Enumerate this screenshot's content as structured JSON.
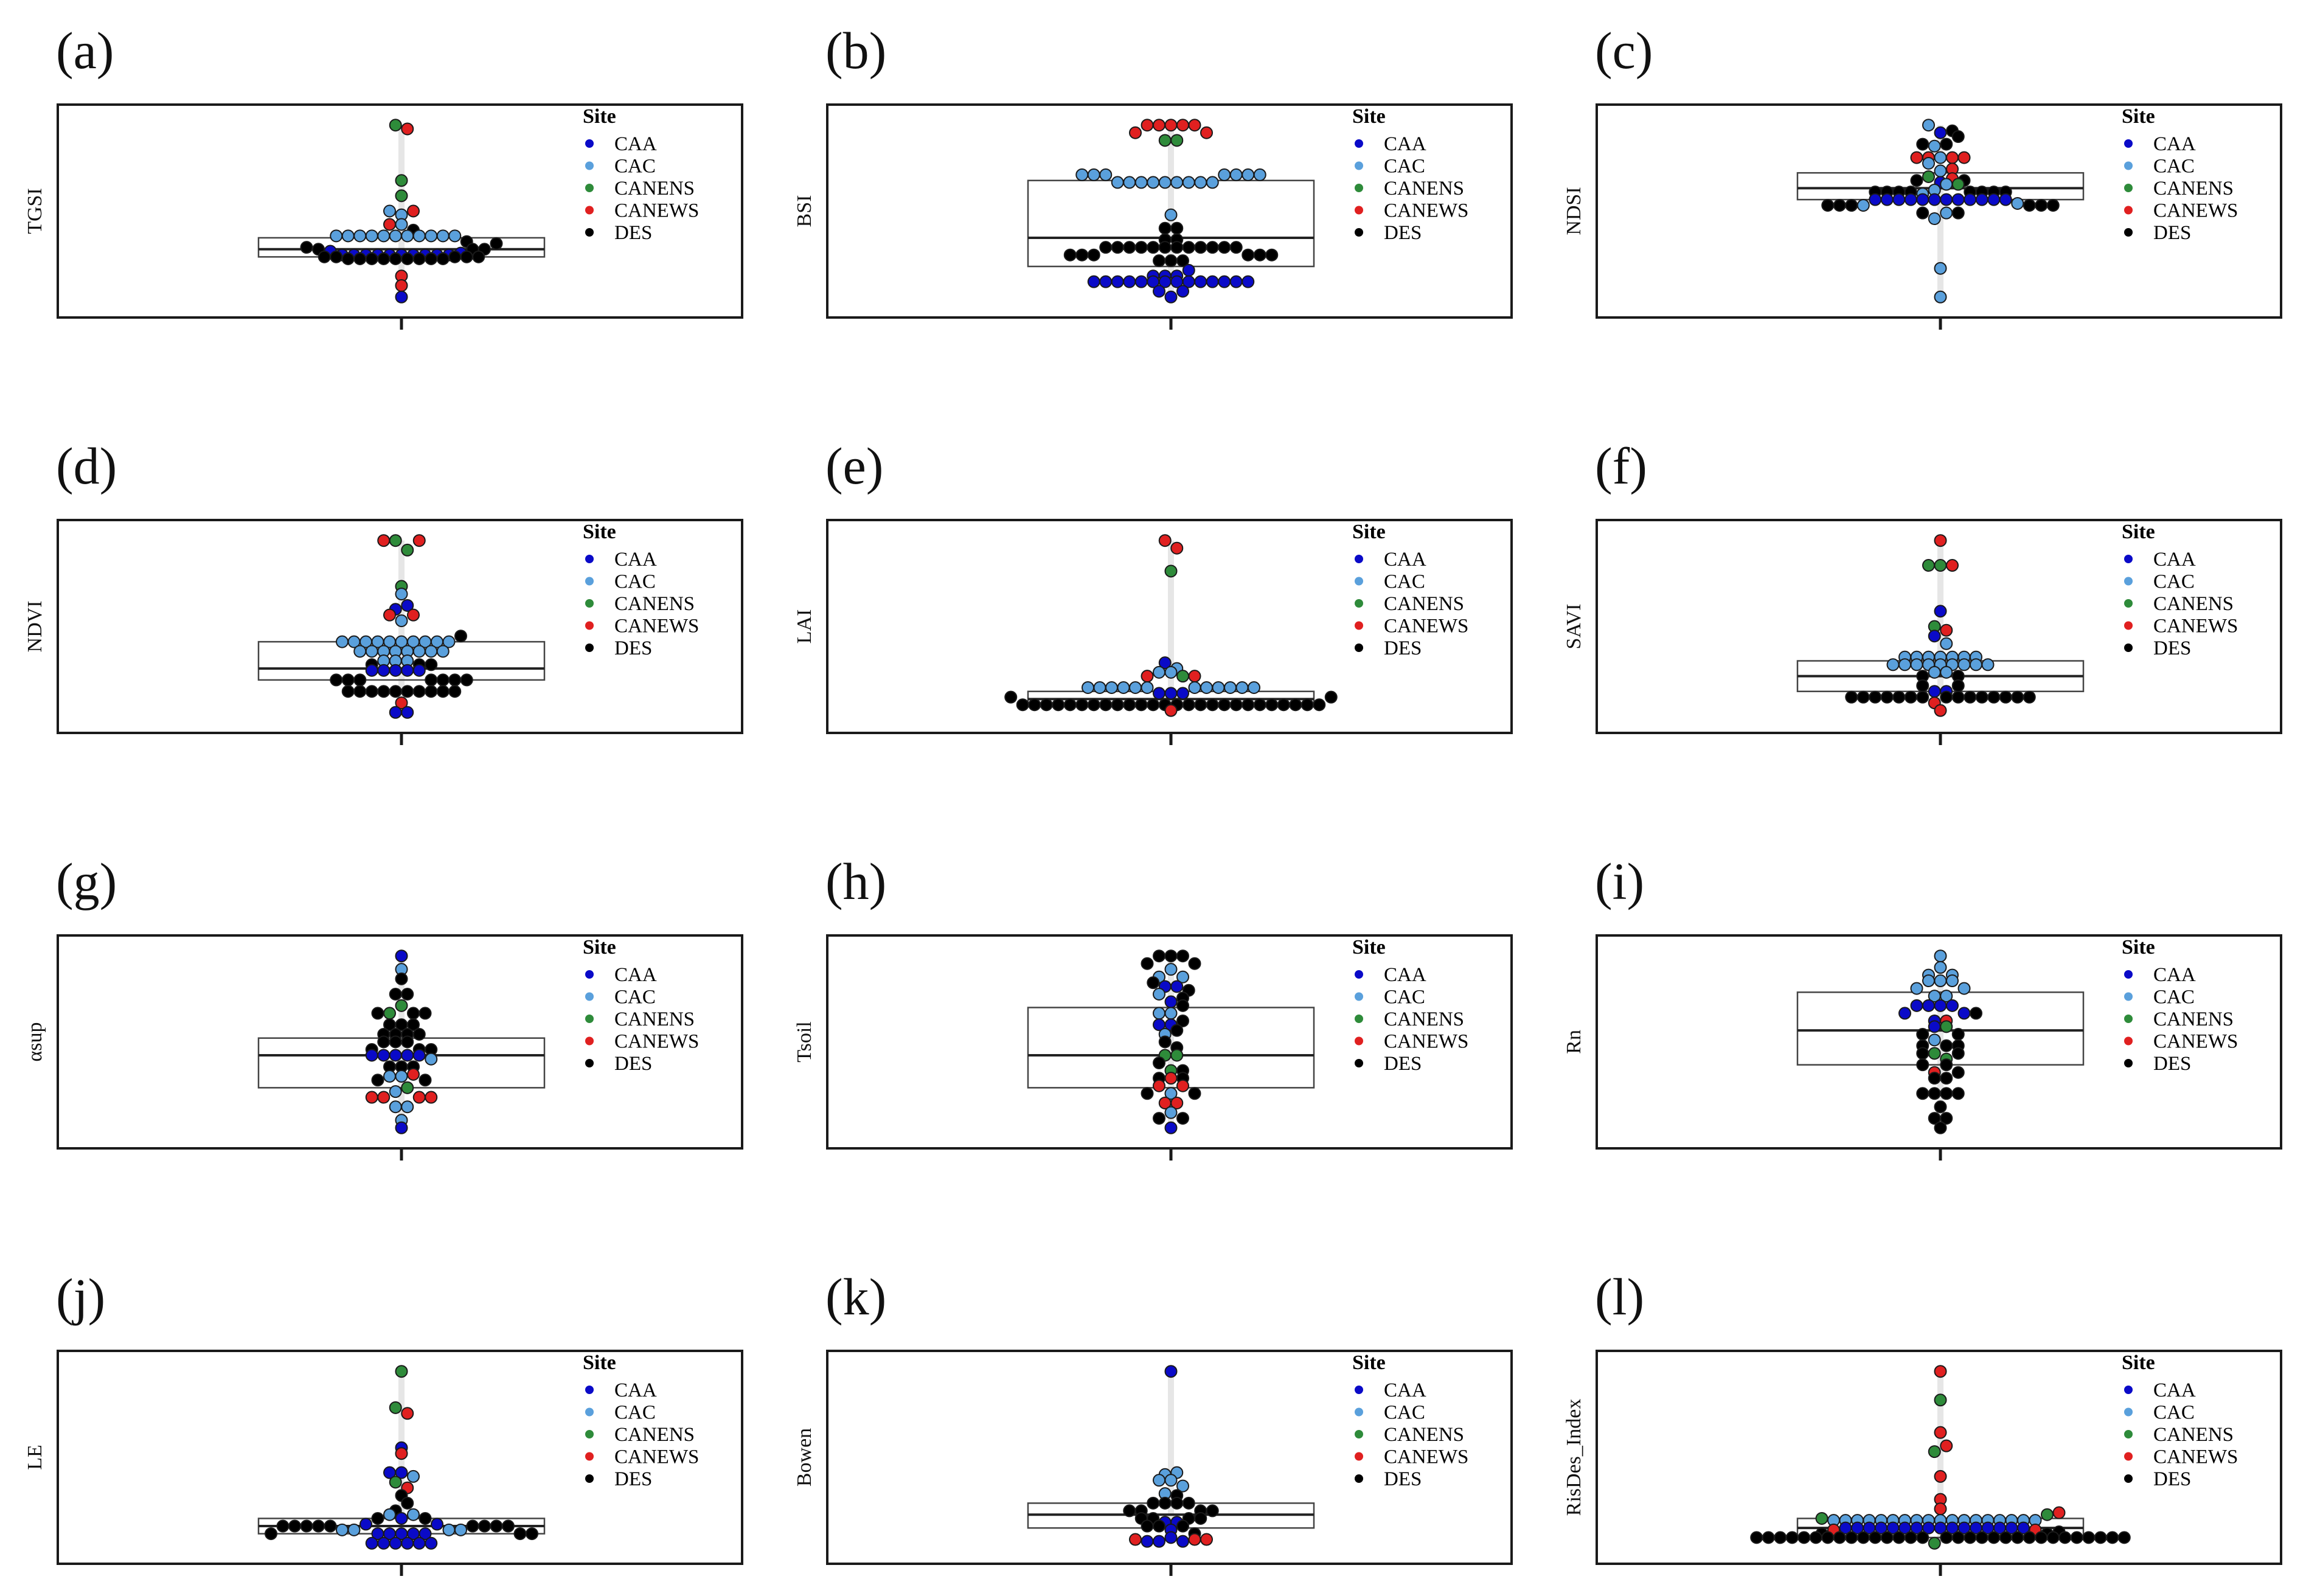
{
  "legend": {
    "title": "Site",
    "entries": [
      "CAA",
      "CAC",
      "CANENS",
      "CANEWS",
      "DES"
    ]
  },
  "colors": {
    "CAA": "#0a0ac8",
    "CAC": "#5aa0dc",
    "CANENS": "#2e8b3a",
    "CANEWS": "#e02020",
    "DES": "#000000"
  },
  "chart_data": [
    {
      "panel": "(a)",
      "type": "box",
      "ylabel": "TGSI",
      "ylim": [
        0,
        10
      ],
      "box": {
        "q1": 2.6,
        "median": 3.0,
        "q3": 3.6
      },
      "whisker": [
        0.5,
        9.5
      ],
      "points": {
        "CAA": [
          0.5,
          2.7,
          2.7,
          2.7,
          2.7,
          2.7,
          2.7,
          2.7,
          2.7,
          2.7,
          2.7,
          2.8,
          2.9
        ],
        "CAC": [
          3.7,
          3.7,
          3.7,
          3.7,
          3.7,
          3.7,
          3.7,
          3.7,
          3.7,
          3.7,
          3.7,
          4.3,
          4.8,
          5.0
        ],
        "CANENS": [
          9.5,
          6.6,
          5.8
        ],
        "CANEWS": [
          9.3,
          5.0,
          4.3,
          1.1,
          1.6
        ],
        "DES": [
          2.5,
          2.5,
          2.5,
          2.5,
          2.5,
          2.5,
          2.5,
          2.5,
          2.5,
          2.6,
          2.6,
          2.6,
          2.6,
          2.6,
          3.0,
          3.0,
          3.0,
          3.1,
          3.3,
          3.4,
          4.0
        ]
      }
    },
    {
      "panel": "(b)",
      "type": "box",
      "ylabel": "BSI",
      "ylim": [
        0,
        10
      ],
      "box": {
        "q1": 2.1,
        "median": 3.6,
        "q3": 6.6
      },
      "whisker": [
        0.5,
        9.5
      ],
      "points": {
        "CAA": [
          0.5,
          0.8,
          0.8,
          1.3,
          1.3,
          1.3,
          1.3,
          1.3,
          1.3,
          1.3,
          1.3,
          1.3,
          1.3,
          1.3,
          1.3,
          1.3,
          1.3,
          1.6,
          1.6,
          1.6,
          1.9
        ],
        "CAC": [
          6.5,
          6.5,
          6.5,
          6.5,
          6.5,
          6.5,
          6.5,
          6.5,
          6.5,
          6.9,
          6.9,
          6.9,
          6.9,
          6.9,
          6.9,
          6.9,
          4.8
        ],
        "CANENS": [
          8.7,
          8.7
        ],
        "CANEWS": [
          9.5,
          9.5,
          9.5,
          9.5,
          9.5,
          9.1,
          9.1
        ],
        "DES": [
          3.1,
          3.1,
          3.1,
          3.1,
          3.1,
          3.1,
          3.1,
          3.1,
          3.1,
          3.1,
          3.1,
          3.1,
          2.7,
          2.7,
          2.7,
          2.7,
          2.7,
          2.7,
          2.4,
          2.4,
          2.4,
          3.5,
          3.5,
          4.1,
          4.1
        ]
      }
    },
    {
      "panel": "(c)",
      "type": "box",
      "ylabel": "NDSI",
      "ylim": [
        0,
        10
      ],
      "box": {
        "q1": 5.6,
        "median": 6.2,
        "q3": 7.0
      },
      "whisker": [
        0.5,
        9.5
      ],
      "points": {
        "CAA": [
          5.6,
          5.6,
          5.6,
          5.6,
          5.6,
          5.6,
          5.6,
          5.6,
          5.6,
          5.6,
          5.6,
          5.6,
          9.1,
          6.5
        ],
        "CAC": [
          0.5,
          2.0,
          4.6,
          4.9,
          5.3,
          5.4,
          6.1,
          6.4,
          7.1,
          7.5,
          7.8,
          8.4,
          9.5,
          5.9
        ],
        "CANENS": [
          6.8,
          6.4
        ],
        "CANEWS": [
          7.8,
          7.8,
          7.8,
          7.8,
          7.2,
          6.7
        ],
        "DES": [
          6.0,
          6.0,
          6.0,
          6.0,
          6.0,
          6.0,
          6.0,
          6.0,
          5.3,
          5.3,
          5.3,
          5.3,
          5.3,
          5.3,
          4.9,
          4.9,
          6.6,
          6.6,
          8.5,
          8.5,
          8.9,
          9.2
        ]
      }
    },
    {
      "panel": "(d)",
      "type": "box",
      "ylabel": "NDVI",
      "ylim": [
        0,
        10
      ],
      "box": {
        "q1": 2.2,
        "median": 2.8,
        "q3": 4.2
      },
      "whisker": [
        0.5,
        9.5
      ],
      "points": {
        "CAA": [
          0.5,
          0.5,
          2.7,
          2.7,
          2.7,
          2.7,
          2.7,
          5.9,
          6.1
        ],
        "CAC": [
          4.2,
          4.2,
          4.2,
          4.2,
          4.2,
          4.2,
          4.2,
          4.2,
          4.2,
          4.2,
          3.7,
          3.7,
          3.7,
          3.7,
          3.7,
          3.7,
          3.7,
          3.7,
          3.2,
          3.2,
          3.2,
          5.3,
          6.7
        ],
        "CANENS": [
          9.5,
          9.0,
          7.1
        ],
        "CANEWS": [
          9.5,
          9.5,
          5.6,
          5.6,
          1.0
        ],
        "DES": [
          1.6,
          1.6,
          1.6,
          1.6,
          1.6,
          1.6,
          1.6,
          1.6,
          1.6,
          1.6,
          2.2,
          2.2,
          2.2,
          2.2,
          2.2,
          2.2,
          2.2,
          3.0,
          3.0,
          3.0,
          4.5
        ]
      }
    },
    {
      "panel": "(e)",
      "type": "box",
      "ylabel": "LAI",
      "ylim": [
        0,
        10
      ],
      "box": {
        "q1": 0.9,
        "median": 1.2,
        "q3": 1.6
      },
      "whisker": [
        0.5,
        9.5
      ],
      "points": {
        "CAA": [
          1.5,
          1.5,
          1.5,
          3.1
        ],
        "CAC": [
          1.8,
          1.8,
          1.8,
          1.8,
          1.8,
          1.8,
          1.8,
          1.8,
          1.8,
          1.8,
          1.8,
          1.8,
          2.6,
          2.6,
          2.8
        ],
        "CANENS": [
          7.9,
          2.4
        ],
        "CANEWS": [
          9.5,
          9.1,
          0.6,
          2.4,
          2.4
        ],
        "DES": [
          0.9,
          0.9,
          0.9,
          0.9,
          0.9,
          0.9,
          0.9,
          0.9,
          0.9,
          0.9,
          0.9,
          0.9,
          0.9,
          0.9,
          0.9,
          0.9,
          0.9,
          0.9,
          0.9,
          0.9,
          0.9,
          0.9,
          0.9,
          0.9,
          0.9,
          0.9,
          1.3,
          1.3
        ]
      }
    },
    {
      "panel": "(f)",
      "type": "box",
      "ylabel": "SAVI",
      "ylim": [
        0,
        10
      ],
      "box": {
        "q1": 1.6,
        "median": 2.4,
        "q3": 3.2
      },
      "whisker": [
        0.5,
        9.5
      ],
      "points": {
        "CAA": [
          5.8,
          1.6,
          1.6,
          4.5
        ],
        "CAC": [
          3.0,
          3.0,
          3.0,
          3.0,
          3.0,
          3.0,
          3.0,
          3.0,
          3.0,
          3.4,
          3.4,
          3.4,
          3.4,
          3.4,
          3.4,
          3.4,
          2.6,
          2.6,
          4.1
        ],
        "CANENS": [
          8.2,
          8.2,
          5.0
        ],
        "CANEWS": [
          9.5,
          8.2,
          4.8,
          1.0,
          0.6
        ],
        "DES": [
          1.3,
          1.3,
          1.3,
          1.3,
          1.3,
          1.3,
          1.3,
          1.3,
          1.3,
          1.3,
          1.3,
          1.3,
          1.3,
          1.3,
          1.3,
          1.9,
          1.9,
          2.4,
          2.4
        ]
      }
    },
    {
      "panel": "(g)",
      "type": "box",
      "ylabel": "αsup",
      "ylim": [
        0,
        10
      ],
      "box": {
        "q1": 2.6,
        "median": 4.3,
        "q3": 5.2
      },
      "whisker": [
        0.5,
        9.5
      ],
      "points": {
        "CAA": [
          9.5,
          4.3,
          4.3,
          4.3,
          4.3,
          4.3,
          0.5
        ],
        "CAC": [
          8.8,
          4.1,
          3.2,
          3.2,
          2.4,
          1.6,
          1.6,
          0.9
        ],
        "CANENS": [
          6.9,
          6.5,
          2.6
        ],
        "CANEWS": [
          3.3,
          2.1,
          2.1,
          2.1,
          2.1
        ],
        "DES": [
          8.3,
          7.5,
          7.5,
          6.5,
          6.5,
          6.5,
          5.9,
          5.9,
          5.9,
          5.4,
          5.4,
          5.4,
          5.4,
          5.0,
          5.0,
          5.0,
          4.6,
          4.6,
          4.6,
          3.7,
          3.7,
          3.7,
          3.0,
          3.0
        ]
      }
    },
    {
      "panel": "(h)",
      "type": "box",
      "ylabel": "Tsoil",
      "ylim": [
        0,
        10
      ],
      "box": {
        "q1": 2.6,
        "median": 4.3,
        "q3": 6.8
      },
      "whisker": [
        0.5,
        9.5
      ],
      "points": {
        "CAA": [
          0.5,
          7.9,
          7.9,
          7.1,
          5.9,
          5.9
        ],
        "CAC": [
          8.8,
          8.4,
          8.4,
          7.5,
          6.5,
          6.5,
          5.4,
          2.3,
          1.3
        ],
        "CANENS": [
          4.3,
          4.3,
          3.5
        ],
        "CANEWS": [
          3.1,
          2.7,
          2.7,
          1.8,
          1.8
        ],
        "DES": [
          9.5,
          9.5,
          9.5,
          9.1,
          9.1,
          8.1,
          7.7,
          7.3,
          6.9,
          6.1,
          5.6,
          5.0,
          4.7,
          3.9,
          3.5,
          3.1,
          3.1,
          2.3,
          2.3,
          1.0,
          1.0
        ]
      }
    },
    {
      "panel": "(i)",
      "type": "box",
      "ylabel": "Rn",
      "ylim": [
        0,
        10
      ],
      "box": {
        "q1": 3.8,
        "median": 5.6,
        "q3": 7.6
      },
      "whisker": [
        0.5,
        9.5
      ],
      "points": {
        "CAA": [
          6.9,
          6.9,
          6.9,
          6.9,
          6.5,
          6.5,
          6.1,
          5.8
        ],
        "CAC": [
          9.5,
          8.9,
          8.5,
          8.5,
          8.2,
          8.2,
          8.2,
          7.8,
          7.8,
          7.4,
          7.4,
          5.1
        ],
        "CANENS": [
          5.8,
          4.4,
          4.1
        ],
        "CANEWS": [
          6.1,
          3.4
        ],
        "DES": [
          6.5,
          5.4,
          5.4,
          4.8,
          4.8,
          4.8,
          4.4,
          4.4,
          3.8,
          3.8,
          3.4,
          3.1,
          3.1,
          2.3,
          2.3,
          2.3,
          2.3,
          1.6,
          1.0,
          1.0,
          0.5
        ]
      }
    },
    {
      "panel": "(j)",
      "type": "box",
      "ylabel": "LE",
      "ylim": [
        0,
        10
      ],
      "box": {
        "q1": 1.0,
        "median": 1.4,
        "q3": 1.8
      },
      "whisker": [
        0.5,
        9.5
      ],
      "points": {
        "CAA": [
          5.5,
          4.2,
          4.2,
          1.0,
          1.0,
          1.0,
          1.0,
          1.0,
          0.5,
          0.5,
          0.5,
          0.5,
          0.5,
          0.5,
          1.5,
          1.5,
          1.8
        ],
        "CAC": [
          1.2,
          1.2,
          1.2,
          1.2,
          4.0,
          2.0,
          2.0
        ],
        "CANENS": [
          9.5,
          7.6,
          3.7
        ],
        "CANEWS": [
          7.3,
          5.2,
          3.4
        ],
        "DES": [
          1.4,
          1.4,
          1.4,
          1.4,
          1.4,
          1.4,
          1.4,
          1.4,
          1.4,
          1.0,
          1.0,
          1.0,
          1.8,
          1.8,
          2.2,
          2.6,
          3.0
        ]
      }
    },
    {
      "panel": "(k)",
      "type": "box",
      "ylabel": "Bowen",
      "ylim": [
        0,
        10
      ],
      "box": {
        "q1": 1.3,
        "median": 2.0,
        "q3": 2.6
      },
      "whisker": [
        0.5,
        9.5
      ],
      "points": {
        "CAA": [
          9.5,
          1.6,
          1.6,
          1.2,
          0.8,
          0.6,
          0.6,
          0.6
        ],
        "CAC": [
          3.8,
          3.8,
          3.5,
          4.1,
          4.2,
          3.1
        ],
        "CANENS": [],
        "CANEWS": [
          0.7,
          0.7,
          0.7
        ],
        "DES": [
          2.6,
          2.6,
          2.6,
          2.6,
          2.2,
          2.2,
          2.2,
          2.2,
          1.8,
          1.8,
          1.8,
          1.8,
          1.4,
          1.4,
          1.4,
          3.0,
          1.0
        ]
      }
    },
    {
      "panel": "(l)",
      "type": "box",
      "ylabel": "RisDes_Index",
      "ylim": [
        0,
        10
      ],
      "box": {
        "q1": 0.8,
        "median": 1.3,
        "q3": 1.8
      },
      "whisker": [
        0.5,
        9.5
      ],
      "points": {
        "CAA": [
          1.3,
          1.3,
          1.3,
          1.3,
          1.3,
          1.3,
          1.3,
          1.3,
          1.3,
          1.3,
          1.3,
          1.3,
          1.3,
          1.3,
          1.3,
          1.3
        ],
        "CAC": [
          1.7,
          1.7,
          1.7,
          1.7,
          1.7,
          1.7,
          1.7,
          1.7,
          1.7,
          1.7,
          1.7,
          1.7,
          1.7,
          1.7,
          1.7,
          1.7,
          1.7,
          1.7
        ],
        "CANENS": [
          8.0,
          5.3,
          2.0,
          1.8,
          0.5
        ],
        "CANEWS": [
          9.5,
          6.3,
          5.6,
          4.0,
          2.8,
          2.3,
          2.1,
          1.2,
          1.2
        ],
        "DES": [
          0.8,
          0.8,
          0.8,
          0.8,
          0.8,
          0.8,
          0.8,
          0.8,
          0.8,
          0.8,
          0.8,
          0.8,
          0.8,
          0.8,
          0.8,
          0.8,
          0.8,
          0.8,
          0.8,
          0.8,
          0.8,
          0.8,
          0.8,
          0.8,
          0.8,
          0.8,
          0.8,
          0.8,
          0.8,
          0.8,
          0.8,
          1.0,
          1.0,
          1.1
        ]
      }
    }
  ]
}
